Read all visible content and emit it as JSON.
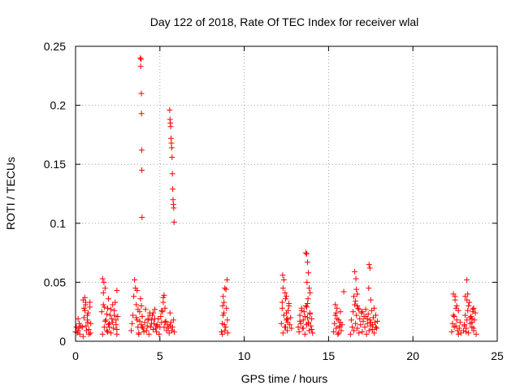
{
  "chart_data": {
    "type": "scatter",
    "title": "Day 122 of 2018, Rate Of TEC Index for receiver wlal",
    "xlabel": "GPS time / hours",
    "ylabel": "ROTI / TECUs",
    "xlim": [
      0,
      25
    ],
    "ylim": [
      0,
      0.25
    ],
    "xticks": [
      0,
      5,
      10,
      15,
      20,
      25
    ],
    "xtick_labels": [
      "0",
      "5",
      "10",
      "15",
      "20",
      "25"
    ],
    "yticks": [
      0,
      0.05,
      0.1,
      0.15,
      0.2,
      0.25
    ],
    "ytick_labels": [
      "0",
      "0.05",
      "0.1",
      "0.15",
      "0.2",
      "0.25"
    ],
    "grid": true,
    "marker": "+",
    "marker_color": "#ff0000",
    "series": [
      {
        "name": "ROTI",
        "x": [
          0.0,
          0.05,
          0.1,
          0.15,
          0.2,
          0.25,
          0.3,
          0.15,
          0.22,
          0.4,
          0.45,
          0.5,
          0.55,
          0.6,
          0.65,
          0.7,
          0.75,
          0.8,
          0.85,
          0.9,
          0.45,
          0.5,
          0.55,
          0.62,
          0.7,
          0.78,
          0.85,
          0.88,
          0.6,
          0.72,
          1.55,
          1.6,
          1.65,
          1.7,
          1.75,
          1.8,
          1.85,
          1.9,
          1.95,
          2.0,
          2.05,
          2.1,
          2.15,
          2.2,
          2.25,
          2.3,
          2.35,
          2.4,
          2.45,
          2.5,
          1.65,
          1.7,
          1.75,
          1.85,
          1.9,
          2.0,
          2.1,
          2.2,
          2.3,
          2.4,
          2.45,
          1.68,
          2.45,
          1.6,
          1.95,
          3.3,
          3.35,
          3.4,
          3.45,
          3.5,
          3.55,
          3.6,
          3.65,
          3.7,
          3.75,
          3.8,
          3.85,
          3.9,
          3.95,
          4.0,
          4.05,
          4.1,
          4.15,
          4.2,
          4.25,
          4.3,
          4.35,
          4.4,
          4.45,
          4.5,
          4.55,
          4.6,
          4.65,
          4.7,
          4.75,
          4.8,
          4.85,
          4.9,
          4.95,
          5.0,
          5.05,
          5.1,
          5.15,
          5.2,
          5.25,
          5.3,
          5.35,
          5.4,
          5.45,
          5.5,
          5.55,
          5.6,
          5.65,
          5.7,
          5.75,
          5.8,
          5.85,
          3.6,
          3.65,
          3.7,
          3.75,
          3.8,
          3.9,
          3.95,
          4.3,
          4.4,
          4.5,
          4.6,
          4.7,
          4.8,
          5.1,
          5.2,
          5.25,
          5.3,
          5.6,
          3.84,
          3.86,
          3.88,
          3.9,
          3.91,
          3.92,
          3.93,
          3.94,
          5.58,
          5.6,
          5.62,
          5.64,
          5.66,
          5.68,
          5.7,
          5.72,
          5.74,
          5.76,
          5.78,
          5.8,
          5.82,
          5.84,
          8.65,
          8.7,
          8.75,
          8.8,
          8.85,
          8.9,
          8.95,
          9.0,
          8.7,
          8.75,
          8.8,
          8.85,
          8.92,
          8.98,
          8.72,
          8.82,
          9.02,
          12.2,
          12.25,
          12.3,
          12.35,
          12.4,
          12.45,
          12.5,
          12.55,
          12.6,
          12.65,
          12.7,
          12.75,
          12.8,
          12.28,
          12.35,
          12.42,
          12.5,
          12.58,
          12.65,
          12.3,
          12.45,
          12.55,
          12.25,
          12.5,
          13.2,
          13.25,
          13.3,
          13.35,
          13.4,
          13.45,
          13.5,
          13.55,
          13.6,
          13.65,
          13.7,
          13.75,
          13.8,
          13.85,
          13.9,
          13.95,
          14.0,
          14.05,
          13.3,
          13.4,
          13.5,
          13.6,
          13.7,
          13.8,
          13.9,
          14.0,
          13.65,
          13.7,
          13.75,
          13.8,
          13.85,
          13.9,
          13.72,
          13.78,
          13.75,
          15.3,
          15.35,
          15.4,
          15.45,
          15.5,
          15.55,
          15.6,
          15.65,
          15.7,
          15.75,
          15.8,
          15.4,
          15.5,
          15.6,
          15.7,
          15.45,
          15.65,
          15.9,
          16.3,
          16.35,
          16.4,
          16.45,
          16.5,
          16.55,
          16.6,
          16.65,
          16.7,
          16.75,
          16.8,
          16.85,
          16.9,
          16.95,
          17.0,
          17.05,
          17.1,
          17.15,
          17.2,
          17.25,
          17.3,
          17.35,
          17.4,
          17.45,
          17.5,
          17.55,
          17.6,
          17.65,
          17.7,
          17.75,
          17.8,
          17.85,
          17.9,
          16.5,
          16.6,
          16.7,
          16.8,
          17.0,
          17.2,
          17.3,
          17.5,
          17.6,
          17.8,
          16.55,
          16.62,
          16.65,
          16.7,
          17.4,
          17.45,
          17.5,
          17.38,
          17.7,
          22.3,
          22.35,
          22.4,
          22.45,
          22.5,
          22.55,
          22.6,
          22.65,
          22.7,
          22.75,
          22.8,
          22.85,
          22.4,
          22.5,
          22.6,
          22.7,
          22.45,
          22.55,
          23.0,
          23.05,
          23.1,
          23.15,
          23.2,
          23.25,
          23.3,
          23.35,
          23.4,
          23.45,
          23.5,
          23.55,
          23.6,
          23.65,
          23.7,
          23.75,
          23.1,
          23.2,
          23.3,
          23.4,
          23.5,
          23.6,
          23.05,
          23.15,
          23.2,
          23.25,
          23.5,
          23.55,
          23.6
        ],
        "y": [
          0.008,
          0.012,
          0.007,
          0.019,
          0.011,
          0.006,
          0.013,
          0.009,
          0.015,
          0.012,
          0.035,
          0.02,
          0.026,
          0.031,
          0.009,
          0.018,
          0.024,
          0.006,
          0.033,
          0.015,
          0.004,
          0.028,
          0.037,
          0.013,
          0.022,
          0.01,
          0.029,
          0.007,
          0.033,
          0.016,
          0.025,
          0.053,
          0.031,
          0.012,
          0.045,
          0.018,
          0.009,
          0.028,
          0.036,
          0.015,
          0.022,
          0.007,
          0.019,
          0.031,
          0.011,
          0.026,
          0.033,
          0.014,
          0.006,
          0.021,
          0.041,
          0.029,
          0.017,
          0.023,
          0.008,
          0.012,
          0.027,
          0.016,
          0.022,
          0.018,
          0.043,
          0.05,
          0.01,
          0.006,
          0.014,
          0.009,
          0.015,
          0.022,
          0.038,
          0.052,
          0.045,
          0.031,
          0.018,
          0.012,
          0.007,
          0.025,
          0.036,
          0.014,
          0.021,
          0.011,
          0.008,
          0.016,
          0.027,
          0.009,
          0.013,
          0.019,
          0.006,
          0.024,
          0.012,
          0.018,
          0.022,
          0.01,
          0.015,
          0.027,
          0.011,
          0.008,
          0.014,
          0.019,
          0.006,
          0.012,
          0.021,
          0.016,
          0.025,
          0.033,
          0.039,
          0.028,
          0.017,
          0.009,
          0.014,
          0.011,
          0.007,
          0.013,
          0.016,
          0.009,
          0.012,
          0.018,
          0.008,
          0.02,
          0.043,
          0.027,
          0.006,
          0.017,
          0.03,
          0.012,
          0.018,
          0.022,
          0.015,
          0.024,
          0.019,
          0.013,
          0.026,
          0.037,
          0.012,
          0.016,
          0.024,
          0.24,
          0.233,
          0.239,
          0.21,
          0.193,
          0.162,
          0.145,
          0.105,
          0.196,
          0.188,
          0.185,
          0.182,
          0.172,
          0.168,
          0.164,
          0.156,
          0.142,
          0.129,
          0.12,
          0.116,
          0.113,
          0.101,
          0.008,
          0.015,
          0.022,
          0.033,
          0.045,
          0.012,
          0.028,
          0.018,
          0.006,
          0.038,
          0.024,
          0.009,
          0.044,
          0.052,
          0.03,
          0.014,
          0.007,
          0.015,
          0.028,
          0.045,
          0.022,
          0.012,
          0.036,
          0.018,
          0.009,
          0.026,
          0.032,
          0.014,
          0.02,
          0.011,
          0.056,
          0.052,
          0.041,
          0.024,
          0.016,
          0.03,
          0.007,
          0.012,
          0.019,
          0.033,
          0.038,
          0.012,
          0.008,
          0.022,
          0.015,
          0.028,
          0.011,
          0.018,
          0.025,
          0.006,
          0.03,
          0.014,
          0.02,
          0.016,
          0.009,
          0.024,
          0.013,
          0.019,
          0.007,
          0.017,
          0.026,
          0.011,
          0.021,
          0.029,
          0.015,
          0.023,
          0.01,
          0.075,
          0.074,
          0.067,
          0.058,
          0.045,
          0.041,
          0.05,
          0.036,
          0.032,
          0.008,
          0.015,
          0.022,
          0.011,
          0.028,
          0.006,
          0.018,
          0.012,
          0.025,
          0.009,
          0.014,
          0.031,
          0.019,
          0.007,
          0.016,
          0.024,
          0.013,
          0.042,
          0.006,
          0.018,
          0.012,
          0.025,
          0.009,
          0.031,
          0.015,
          0.022,
          0.011,
          0.028,
          0.007,
          0.019,
          0.014,
          0.024,
          0.008,
          0.017,
          0.021,
          0.012,
          0.027,
          0.006,
          0.015,
          0.023,
          0.009,
          0.018,
          0.013,
          0.026,
          0.01,
          0.02,
          0.007,
          0.016,
          0.022,
          0.011,
          0.017,
          0.038,
          0.034,
          0.03,
          0.027,
          0.025,
          0.021,
          0.019,
          0.016,
          0.014,
          0.012,
          0.059,
          0.053,
          0.044,
          0.04,
          0.065,
          0.062,
          0.035,
          0.045,
          0.028,
          0.008,
          0.015,
          0.022,
          0.012,
          0.035,
          0.028,
          0.018,
          0.009,
          0.026,
          0.011,
          0.016,
          0.007,
          0.04,
          0.038,
          0.03,
          0.006,
          0.021,
          0.013,
          0.009,
          0.014,
          0.022,
          0.011,
          0.018,
          0.026,
          0.007,
          0.033,
          0.015,
          0.021,
          0.012,
          0.027,
          0.009,
          0.018,
          0.024,
          0.006,
          0.038,
          0.035,
          0.03,
          0.02,
          0.016,
          0.011,
          0.013,
          0.008,
          0.052,
          0.04,
          0.019,
          0.025,
          0.028
        ]
      }
    ]
  }
}
